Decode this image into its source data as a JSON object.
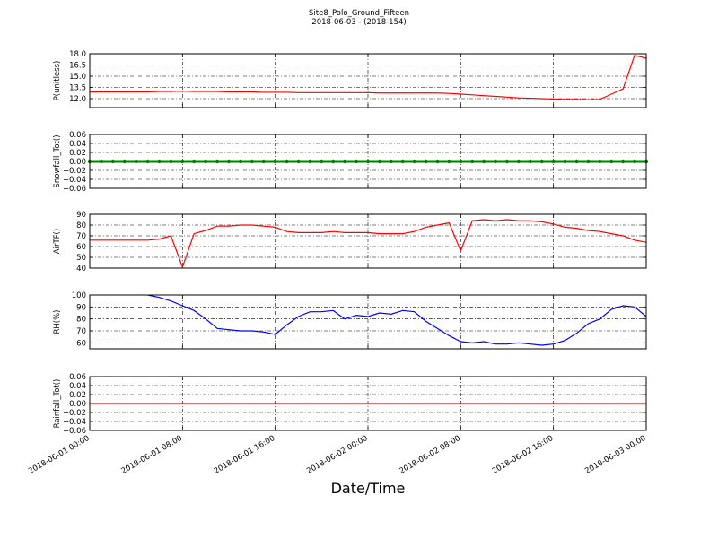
{
  "title": "Site8_Polo_Ground_Fifteen",
  "subtitle": "2018-06-03 - (2018-154)",
  "xlabel": "Date/Time",
  "xlim": [
    "2018-06-01 00:00",
    "2018-06-03 00:00"
  ],
  "xticks": [
    "2018-06-01 00:00",
    "2018-06-01 08:00",
    "2018-06-01 16:00",
    "2018-06-02 00:00",
    "2018-06-02 08:00",
    "2018-06-02 16:00",
    "2018-06-03 00:00"
  ],
  "x": [
    "2018-06-01 00:00",
    "2018-06-01 01:00",
    "2018-06-01 02:00",
    "2018-06-01 03:00",
    "2018-06-01 04:00",
    "2018-06-01 05:00",
    "2018-06-01 06:00",
    "2018-06-01 07:00",
    "2018-06-01 08:00",
    "2018-06-01 09:00",
    "2018-06-01 10:00",
    "2018-06-01 11:00",
    "2018-06-01 12:00",
    "2018-06-01 13:00",
    "2018-06-01 14:00",
    "2018-06-01 15:00",
    "2018-06-01 16:00",
    "2018-06-01 17:00",
    "2018-06-01 18:00",
    "2018-06-01 19:00",
    "2018-06-01 20:00",
    "2018-06-01 21:00",
    "2018-06-01 22:00",
    "2018-06-01 23:00",
    "2018-06-02 00:00",
    "2018-06-02 01:00",
    "2018-06-02 02:00",
    "2018-06-02 03:00",
    "2018-06-02 04:00",
    "2018-06-02 05:00",
    "2018-06-02 06:00",
    "2018-06-02 07:00",
    "2018-06-02 08:00",
    "2018-06-02 09:00",
    "2018-06-02 10:00",
    "2018-06-02 11:00",
    "2018-06-02 12:00",
    "2018-06-02 13:00",
    "2018-06-02 14:00",
    "2018-06-02 15:00",
    "2018-06-02 16:00",
    "2018-06-02 17:00",
    "2018-06-02 18:00",
    "2018-06-02 19:00",
    "2018-06-02 20:00",
    "2018-06-02 21:00",
    "2018-06-02 22:00",
    "2018-06-02 23:00",
    "2018-06-03 00:00"
  ],
  "chart_data": [
    {
      "type": "line",
      "ylabel": "P(unitless)",
      "ylim": [
        10.8,
        18.0
      ],
      "grid": true,
      "yticks": [
        {
          "value": 12,
          "label": "12.0"
        },
        {
          "value": 13.5,
          "label": "13.5"
        },
        {
          "value": 15,
          "label": "15.0"
        },
        {
          "value": 16.5,
          "label": "16.5"
        },
        {
          "value": 18,
          "label": "18.0"
        }
      ],
      "series": [
        {
          "color": "#ff0000",
          "values": [
            12.9,
            12.9,
            12.9,
            12.9,
            12.9,
            12.9,
            12.95,
            12.95,
            13.0,
            12.95,
            12.95,
            12.95,
            12.9,
            12.9,
            12.9,
            12.85,
            12.85,
            12.85,
            12.8,
            12.8,
            12.8,
            12.8,
            12.8,
            12.8,
            12.8,
            12.75,
            12.75,
            12.75,
            12.75,
            12.75,
            12.75,
            12.7,
            12.6,
            12.5,
            12.4,
            12.3,
            12.2,
            12.1,
            12.05,
            12.0,
            11.95,
            11.9,
            11.9,
            11.85,
            11.9,
            12.6,
            13.3,
            17.8,
            17.4
          ]
        }
      ]
    },
    {
      "type": "line",
      "ylabel": "Snowfall_Tot()",
      "ylim": [
        -0.06,
        0.06
      ],
      "grid": true,
      "markers": true,
      "yticks": [
        {
          "value": -0.06,
          "label": "−0.06"
        },
        {
          "value": -0.04,
          "label": "−0.04"
        },
        {
          "value": -0.02,
          "label": "−0.02"
        },
        {
          "value": 0,
          "label": "0.00"
        },
        {
          "value": 0.02,
          "label": "0.02"
        },
        {
          "value": 0.04,
          "label": "0.04"
        },
        {
          "value": 0.06,
          "label": "0.06"
        }
      ],
      "series": [
        {
          "color": "#007f00",
          "values": [
            0,
            0,
            0,
            0,
            0,
            0,
            0,
            0,
            0,
            0,
            0,
            0,
            0,
            0,
            0,
            0,
            0,
            0,
            0,
            0,
            0,
            0,
            0,
            0,
            0,
            0,
            0,
            0,
            0,
            0,
            0,
            0,
            0,
            0,
            0,
            0,
            0,
            0,
            0,
            0,
            0,
            0,
            0,
            0,
            0,
            0,
            0,
            0,
            0
          ]
        }
      ]
    },
    {
      "type": "line",
      "ylabel": "AirTF()",
      "ylim": [
        40,
        90
      ],
      "grid": true,
      "yticks": [
        40,
        50,
        60,
        70,
        80,
        90
      ],
      "series": [
        {
          "color": "#ff0000",
          "values": [
            66,
            66,
            66,
            66,
            66,
            66,
            67,
            70,
            41,
            72,
            75,
            79,
            79,
            80,
            80,
            79,
            78,
            74,
            73,
            73,
            73,
            74,
            73,
            73,
            73,
            72,
            72,
            72,
            74,
            78,
            80,
            82,
            56,
            84,
            85,
            84,
            85,
            84,
            84,
            83,
            81,
            78,
            77,
            75,
            74,
            72,
            70,
            66,
            64
          ]
        }
      ]
    },
    {
      "type": "line",
      "ylabel": "RH(%)",
      "ylim": [
        55,
        100
      ],
      "grid": true,
      "yticks": [
        60,
        70,
        80,
        90,
        100
      ],
      "series": [
        {
          "color": "#0000ff",
          "values": [
            null,
            null,
            null,
            null,
            null,
            100,
            98,
            95,
            91,
            87,
            80,
            72,
            71,
            70,
            70,
            69,
            67,
            75,
            82,
            86,
            86,
            87,
            80,
            83,
            82,
            85,
            84,
            87,
            86,
            78,
            72,
            66,
            61,
            60,
            61,
            59,
            59,
            60,
            59,
            58,
            59,
            62,
            68,
            76,
            80,
            88,
            91,
            90,
            82
          ]
        }
      ]
    },
    {
      "type": "line",
      "ylabel": "Rainfall_Tot()",
      "ylim": [
        -0.06,
        0.06
      ],
      "grid": true,
      "yticks": [
        {
          "value": -0.06,
          "label": "−0.06"
        },
        {
          "value": -0.04,
          "label": "−0.04"
        },
        {
          "value": -0.02,
          "label": "−0.02"
        },
        {
          "value": 0,
          "label": "0.00"
        },
        {
          "value": 0.02,
          "label": "0.02"
        },
        {
          "value": 0.04,
          "label": "0.04"
        },
        {
          "value": 0.06,
          "label": "0.06"
        }
      ],
      "series": [
        {
          "color": "#ff0000",
          "values": [
            0,
            0,
            0,
            0,
            0,
            0,
            0,
            0,
            0,
            0,
            0,
            0,
            0,
            0,
            0,
            0,
            0,
            0,
            0,
            0,
            0,
            0,
            0,
            0,
            0,
            0,
            0,
            0,
            0,
            0,
            0,
            0,
            0,
            0,
            0,
            0,
            0,
            0,
            0,
            0,
            0,
            0,
            0,
            0,
            0,
            0,
            0,
            0,
            0
          ]
        }
      ]
    }
  ]
}
